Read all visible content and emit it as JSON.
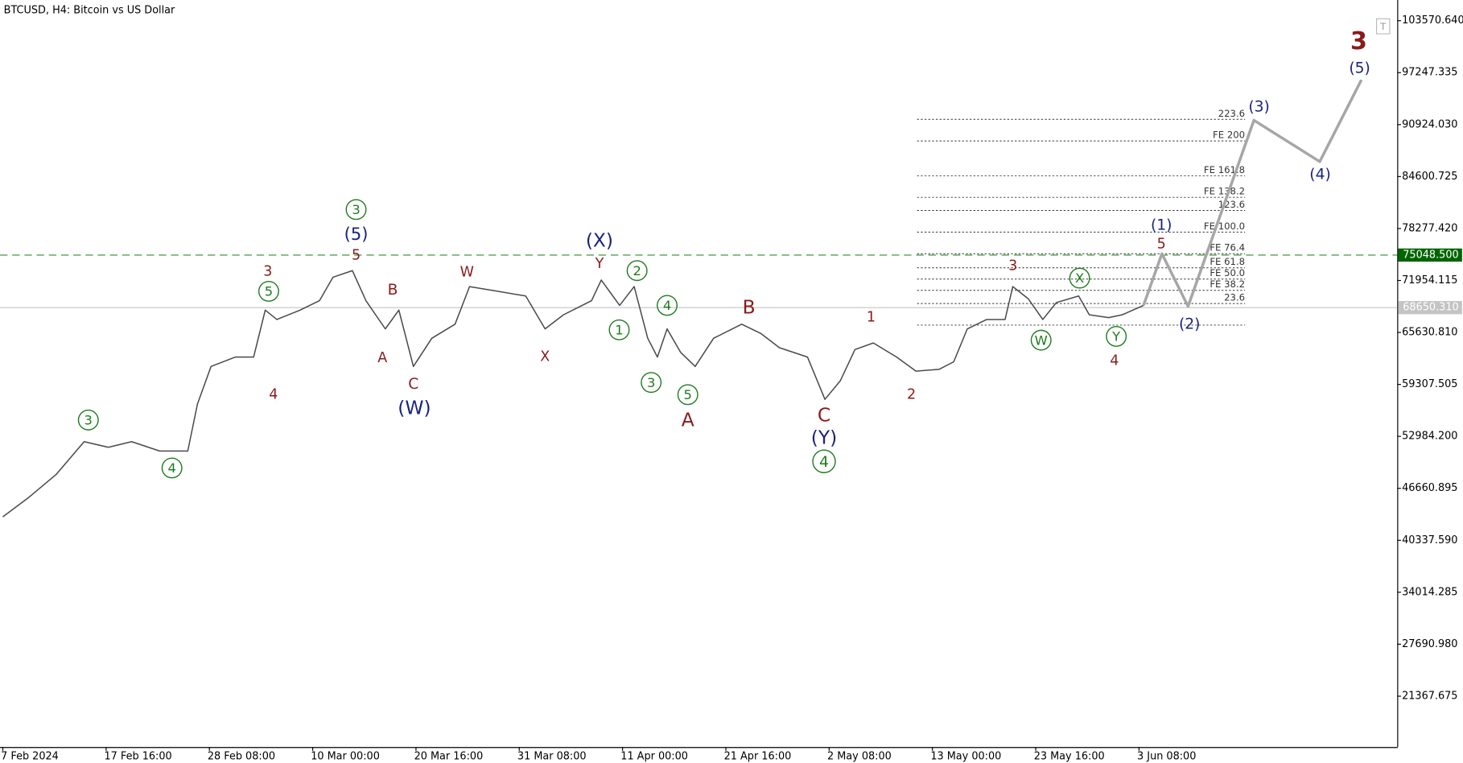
{
  "chart_data": {
    "type": "line",
    "title": "BTCUSD, H4:  Bitcoin vs US Dollar",
    "xlim": [
      0,
      144
    ],
    "ylim": [
      15181,
      106086
    ],
    "xticks": [
      {
        "value": 0,
        "label": "7 Feb 2024"
      },
      {
        "value": 10.667,
        "label": "17 Feb 16:00"
      },
      {
        "value": 21.333,
        "label": "28 Feb 08:00"
      },
      {
        "value": 32,
        "label": "10 Mar 00:00"
      },
      {
        "value": 42.667,
        "label": "20 Mar 16:00"
      },
      {
        "value": 53.333,
        "label": "31 Mar 08:00"
      },
      {
        "value": 64,
        "label": "11 Apr 00:00"
      },
      {
        "value": 74.667,
        "label": "21 Apr 16:00"
      },
      {
        "value": 85.333,
        "label": "2 May 08:00"
      },
      {
        "value": 96,
        "label": "13 May 00:00"
      },
      {
        "value": 106.667,
        "label": "23 May 16:00"
      },
      {
        "value": 117.333,
        "label": "3 Jun 08:00"
      }
    ],
    "yticks": [
      {
        "value": 103570.64,
        "label": "103570.640"
      },
      {
        "value": 97247.335,
        "label": "97247.335"
      },
      {
        "value": 90924.03,
        "label": "90924.030"
      },
      {
        "value": 84600.725,
        "label": "84600.725"
      },
      {
        "value": 78277.42,
        "label": "78277.420"
      },
      {
        "value": 71954.115,
        "label": "71954.115"
      },
      {
        "value": 65630.81,
        "label": "65630.810"
      },
      {
        "value": 59307.505,
        "label": "59307.505"
      },
      {
        "value": 52984.2,
        "label": "52984.200"
      },
      {
        "value": 46660.895,
        "label": "46660.895"
      },
      {
        "value": 40337.59,
        "label": "40337.590"
      },
      {
        "value": 34014.285,
        "label": "34014.285"
      },
      {
        "value": 27690.98,
        "label": "27690.980"
      },
      {
        "value": 21367.675,
        "label": "21367.675"
      }
    ],
    "series": [
      {
        "color": "#4a4a4a",
        "width": 1.3,
        "x": [
          0,
          2.6,
          5.5,
          8.4,
          10.9,
          13.3,
          16.2,
          19.1,
          20.1,
          21.5,
          24.0,
          25.9,
          27.1,
          28.3,
          30.7,
          32.7,
          34.1,
          36.1,
          37.5,
          39.5,
          40.9,
          42.4,
          44.3,
          46.7,
          48.2,
          51.1,
          54.0,
          56.0,
          57.9,
          60.8,
          61.8,
          63.7,
          65.2,
          66.6,
          67.6,
          68.6,
          70.0,
          71.5,
          73.4,
          76.3,
          78.3,
          80.2,
          83.1,
          84.9,
          86.5,
          88.0,
          89.9,
          92.3,
          94.3,
          96.7,
          98.2,
          99.6,
          101.6,
          103.5,
          104.3,
          105.9,
          107.4,
          108.8,
          111.1,
          112.2,
          114.2,
          115.6,
          117.8
        ],
        "values": [
          43194,
          45481,
          48340,
          52342,
          51656,
          52342,
          51199,
          51199,
          56916,
          61490,
          62634,
          62634,
          68351,
          67208,
          68351,
          69495,
          72353,
          73154,
          69495,
          66064,
          68351,
          61490,
          64921,
          66636,
          71210,
          70638,
          70066,
          66064,
          67779,
          69495,
          72010,
          68923,
          71210,
          64921,
          62634,
          66064,
          63205,
          61490,
          64921,
          66636,
          65492,
          63777,
          62634,
          57488,
          59775,
          63549,
          64349,
          62634,
          60918,
          61147,
          62062,
          66064,
          67208,
          67208,
          71210,
          69724,
          67208,
          69266,
          70066,
          67779,
          67436,
          67779,
          68923
        ]
      },
      {
        "color": "#a6a6a6",
        "width": 3,
        "x": [
          117.8,
          119.7,
          122.4,
          129.2,
          136.0,
          140.3
        ],
        "values": [
          68923,
          75212,
          68808,
          91450,
          86418,
          96367
        ]
      }
    ],
    "hlines": [
      {
        "value": 75048.5,
        "label": "75048.500",
        "color": "#2e8b2e",
        "box": "#006400",
        "dashed": true
      },
      {
        "value": 68650.31,
        "label": "68650.310",
        "color": "#c4c4c4",
        "box": "#c4c4c4",
        "dashed": false
      }
    ],
    "fib_levels": [
      {
        "value": 91564,
        "label": "223.6"
      },
      {
        "value": 88934,
        "label": "FE 200"
      },
      {
        "value": 84703,
        "label": "FE 161.8"
      },
      {
        "value": 82073,
        "label": "FE 138.2"
      },
      {
        "value": 80472,
        "label": "123.6"
      },
      {
        "value": 77842,
        "label": "FE 100.0"
      },
      {
        "value": 75212,
        "label": "FE 76.4"
      },
      {
        "value": 73497,
        "label": "FE 61.8"
      },
      {
        "value": 72125,
        "label": "FE 50.0"
      },
      {
        "value": 70753,
        "label": "FE 38.2"
      },
      {
        "value": 69152,
        "label": "23.6"
      },
      {
        "value": 66522,
        "label": null
      }
    ],
    "annotations": [
      {
        "text": "3",
        "color": "#1e7b1e",
        "circled": true
      },
      {
        "text": "(5)",
        "color": "#1a237e",
        "circled": false
      },
      {
        "text": "5",
        "color": "#8b1a1a",
        "circled": false
      },
      {
        "text": "3",
        "color": "#8b1a1a",
        "circled": false
      },
      {
        "text": "5",
        "color": "#1e7b1e",
        "circled": true
      },
      {
        "text": "4",
        "color": "#8b1a1a",
        "circled": false
      },
      {
        "text": "B",
        "color": "#8b1a1a",
        "circled": false
      },
      {
        "text": "A",
        "color": "#8b1a1a",
        "circled": false
      },
      {
        "text": "C",
        "color": "#8b1a1a",
        "circled": false
      },
      {
        "text": "(W)",
        "color": "#1a237e",
        "circled": false
      },
      {
        "text": "W",
        "color": "#8b1a1a",
        "circled": false
      },
      {
        "text": "X",
        "color": "#8b1a1a",
        "circled": false
      },
      {
        "text": "(X)",
        "color": "#1a237e",
        "circled": false
      },
      {
        "text": "Y",
        "color": "#8b1a1a",
        "circled": false
      },
      {
        "text": "2",
        "color": "#1e7b1e",
        "circled": true
      },
      {
        "text": "1",
        "color": "#1e7b1e",
        "circled": true
      },
      {
        "text": "4",
        "color": "#1e7b1e",
        "circled": true
      },
      {
        "text": "3",
        "color": "#1e7b1e",
        "circled": true
      },
      {
        "text": "5",
        "color": "#1e7b1e",
        "circled": true
      },
      {
        "text": "A",
        "color": "#8b1a1a",
        "circled": false
      },
      {
        "text": "B",
        "color": "#8b1a1a",
        "circled": false
      },
      {
        "text": "C",
        "color": "#8b1a1a",
        "circled": false
      },
      {
        "text": "(Y)",
        "color": "#1a237e",
        "circled": false
      },
      {
        "text": "4",
        "color": "#1e7b1e",
        "circled": true
      },
      {
        "text": "3",
        "color": "#1e7b1e",
        "circled": true
      },
      {
        "text": "4",
        "color": "#1e7b1e",
        "circled": true
      },
      {
        "text": "1",
        "color": "#8b1a1a",
        "circled": false
      },
      {
        "text": "2",
        "color": "#8b1a1a",
        "circled": false
      },
      {
        "text": "3",
        "color": "#8b1a1a",
        "circled": false
      },
      {
        "text": "X",
        "color": "#1e7b1e",
        "circled": true
      },
      {
        "text": "W",
        "color": "#1e7b1e",
        "circled": true
      },
      {
        "text": "Y",
        "color": "#1e7b1e",
        "circled": true
      },
      {
        "text": "4",
        "color": "#8b1a1a",
        "circled": false
      },
      {
        "text": "(1)",
        "color": "#1a237e",
        "circled": false
      },
      {
        "text": "5",
        "color": "#8b1a1a",
        "circled": false
      },
      {
        "text": "(2)",
        "color": "#1a237e",
        "circled": false
      },
      {
        "text": "(3)",
        "color": "#1a237e",
        "circled": false
      },
      {
        "text": "(4)",
        "color": "#1a237e",
        "circled": false
      },
      {
        "text": "(5)",
        "color": "#1a237e",
        "circled": false
      },
      {
        "text": "3",
        "color": "#8b1a1a",
        "circled": false
      }
    ]
  }
}
